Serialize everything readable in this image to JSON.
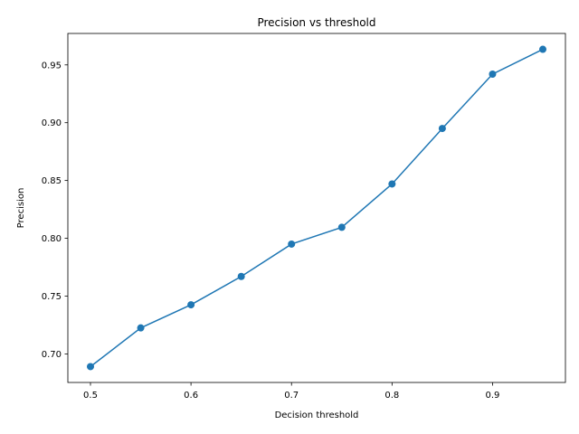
{
  "chart_data": {
    "type": "line",
    "title": "Precision vs threshold",
    "xlabel": "Decision threshold",
    "ylabel": "Precision",
    "x": [
      0.5,
      0.55,
      0.6,
      0.65,
      0.7,
      0.75,
      0.8,
      0.85,
      0.9,
      0.95
    ],
    "series": [
      {
        "values": [
          0.689,
          0.7225,
          0.7425,
          0.767,
          0.795,
          0.8095,
          0.847,
          0.895,
          0.942,
          0.9635
        ],
        "color": "#1f77b4",
        "marker": "circle"
      }
    ],
    "xlim": [
      0.4775,
      0.9725
    ],
    "ylim": [
      0.6753,
      0.9772
    ],
    "xticks": [
      0.5,
      0.6,
      0.7,
      0.8,
      0.9
    ],
    "xtick_labels": [
      "0.5",
      "0.6",
      "0.7",
      "0.8",
      "0.9"
    ],
    "yticks": [
      0.7,
      0.75,
      0.8,
      0.85,
      0.9,
      0.95
    ],
    "ytick_labels": [
      "0.70",
      "0.75",
      "0.80",
      "0.85",
      "0.90",
      "0.95"
    ],
    "grid": false,
    "legend": "none"
  }
}
